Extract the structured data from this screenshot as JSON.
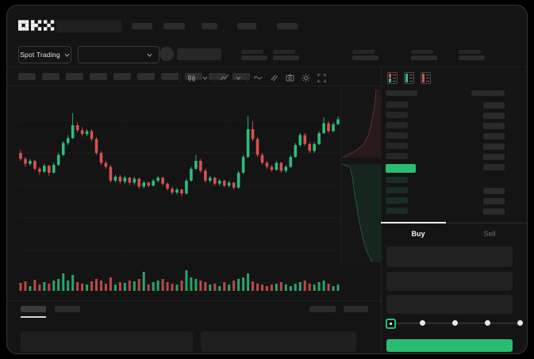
{
  "colors": {
    "up": "#2ebd7c",
    "down": "#d9514f",
    "accent": "#2abd72",
    "background": "#141414",
    "panel": "#1f1f1f",
    "placeholder": "#2b2b2b"
  },
  "header": {
    "logo": "OKX",
    "market_dropdown_label": "Spot Trading",
    "nav_slots": 5,
    "stat_slots": 5
  },
  "toolbar": {
    "timeframe_slots": 10,
    "icons": [
      "chart-style-icon",
      "chevron-down-icon",
      "indicators-icon",
      "chevron-down-icon",
      "line-tool-icon",
      "compare-icon",
      "camera-icon",
      "settings-icon",
      "fullscreen-icon"
    ]
  },
  "chart_data": {
    "type": "candlestick",
    "note": "OHLC values normalized 0-100 (read from pixels), left-to-right",
    "up_color": "#2ebd7c",
    "down_color": "#d9514f",
    "candles": [
      [
        48,
        42,
        51,
        40
      ],
      [
        42,
        37,
        44,
        34
      ],
      [
        37,
        40,
        42,
        35
      ],
      [
        40,
        32,
        41,
        30
      ],
      [
        32,
        29,
        34,
        26
      ],
      [
        29,
        35,
        37,
        28
      ],
      [
        35,
        28,
        36,
        25
      ],
      [
        28,
        36,
        38,
        27
      ],
      [
        36,
        46,
        48,
        35
      ],
      [
        46,
        58,
        60,
        45
      ],
      [
        58,
        63,
        66,
        56
      ],
      [
        63,
        76,
        88,
        62
      ],
      [
        76,
        71,
        79,
        69
      ],
      [
        71,
        67,
        74,
        65
      ],
      [
        67,
        70,
        72,
        65
      ],
      [
        70,
        62,
        72,
        60
      ],
      [
        62,
        48,
        64,
        46
      ],
      [
        48,
        38,
        50,
        36
      ],
      [
        38,
        34,
        40,
        32
      ],
      [
        34,
        20,
        36,
        18
      ],
      [
        20,
        24,
        26,
        18
      ],
      [
        24,
        19,
        26,
        17
      ],
      [
        19,
        23,
        25,
        17
      ],
      [
        23,
        18,
        24,
        16
      ],
      [
        18,
        22,
        24,
        16
      ],
      [
        22,
        14,
        23,
        12
      ],
      [
        14,
        18,
        20,
        12
      ],
      [
        18,
        15,
        19,
        13
      ],
      [
        15,
        20,
        22,
        14
      ],
      [
        20,
        23,
        25,
        18
      ],
      [
        23,
        17,
        24,
        15
      ],
      [
        17,
        12,
        18,
        10
      ],
      [
        12,
        8,
        14,
        6
      ],
      [
        8,
        11,
        13,
        6
      ],
      [
        11,
        7,
        12,
        4
      ],
      [
        7,
        20,
        22,
        6
      ],
      [
        20,
        32,
        34,
        19
      ],
      [
        32,
        40,
        46,
        31
      ],
      [
        40,
        30,
        42,
        28
      ],
      [
        30,
        20,
        32,
        18
      ],
      [
        20,
        23,
        25,
        18
      ],
      [
        23,
        17,
        24,
        15
      ],
      [
        17,
        20,
        22,
        15
      ],
      [
        20,
        15,
        21,
        13
      ],
      [
        15,
        18,
        20,
        13
      ],
      [
        18,
        13,
        19,
        11
      ],
      [
        13,
        28,
        30,
        12
      ],
      [
        28,
        44,
        46,
        27
      ],
      [
        44,
        72,
        85,
        43
      ],
      [
        72,
        62,
        80,
        60
      ],
      [
        62,
        46,
        64,
        44
      ],
      [
        46,
        38,
        48,
        36
      ],
      [
        38,
        34,
        40,
        32
      ],
      [
        34,
        31,
        36,
        29
      ],
      [
        31,
        38,
        40,
        30
      ],
      [
        38,
        30,
        39,
        28
      ],
      [
        30,
        34,
        36,
        28
      ],
      [
        34,
        44,
        46,
        33
      ],
      [
        44,
        56,
        58,
        43
      ],
      [
        56,
        66,
        68,
        54
      ],
      [
        66,
        57,
        68,
        55
      ],
      [
        57,
        50,
        59,
        48
      ],
      [
        50,
        57,
        59,
        48
      ],
      [
        57,
        68,
        70,
        56
      ],
      [
        68,
        78,
        84,
        67
      ],
      [
        78,
        70,
        80,
        68
      ],
      [
        70,
        77,
        79,
        69
      ],
      [
        77,
        82,
        85,
        76
      ]
    ],
    "volume": [
      10,
      12,
      6,
      14,
      8,
      11,
      9,
      13,
      15,
      22,
      13,
      20,
      11,
      9,
      8,
      12,
      15,
      13,
      9,
      17,
      8,
      11,
      10,
      13,
      12,
      15,
      24,
      8,
      11,
      13,
      15,
      11,
      9,
      8,
      13,
      26,
      17,
      15,
      13,
      11,
      8,
      9,
      6,
      11,
      8,
      13,
      15,
      17,
      22,
      12,
      9,
      8,
      6,
      8,
      9,
      11,
      8,
      6,
      9,
      11,
      13,
      9,
      8,
      11,
      13,
      9,
      6,
      8
    ],
    "h_gridlines": [
      41,
      82,
      123,
      164,
      205,
      246
    ],
    "v_gridlines": [
      134,
      268
    ]
  },
  "depth_profile": {
    "ask_fill": "52,2 45,2 44,14 42,28 39,45 35,60 29,72 18,80 2,88 52,88",
    "ask_line": "45,2 44,14 42,28 39,45 35,60 29,72 18,80 2,88",
    "bid_fill": "52,96 2,96 12,100 15,112 17,128 20,146 23,164 26,180 30,196 34,208 38,216 40,220 52,220",
    "bid_line": "2,96 12,100 15,112 17,128 20,146 23,164 26,180 30,196 34,208 38,216 40,220"
  },
  "order_book": {
    "view_icons": [
      "book-combined-icon",
      "book-bids-icon",
      "book-asks-icon"
    ],
    "ask_rows": 6,
    "amount_rows": 7,
    "bid_rows": 4,
    "bid_amount_rows": 3,
    "last_price_direction": "up"
  },
  "trade_panel": {
    "tabs": [
      {
        "label": "Buy",
        "active": true
      },
      {
        "label": "Sell",
        "active": false
      }
    ],
    "field_count": 3,
    "slider": {
      "stops": 5,
      "value_index": 0
    }
  },
  "bottom_bar": {
    "tab_slots": 2,
    "right_slots": 2,
    "panel_slots": 2
  }
}
